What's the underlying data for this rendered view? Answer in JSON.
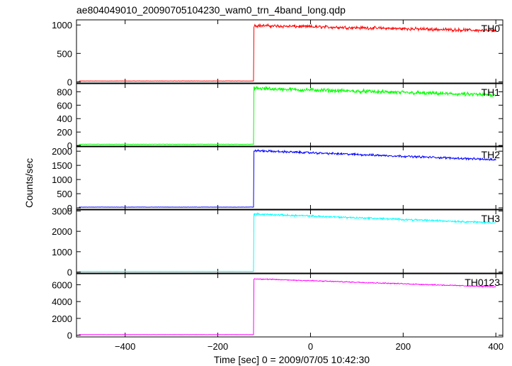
{
  "chart_data": {
    "type": "line",
    "title": "ae804049010_20090705104230_wam0_trn_4band_long.qdp",
    "xlabel": "Time [sec] 0 = 2009/07/05 10:42:30",
    "ylabel": "Counts/sec",
    "xlim": [
      -505,
      415
    ],
    "x_ticks": [
      -400,
      -200,
      0,
      200,
      400
    ],
    "x_tick_labels": [
      "−400",
      "−200",
      "0",
      "200",
      "400"
    ],
    "step_time": -122,
    "data_end": 400,
    "series": [
      {
        "name": "TH0",
        "color": "#ff0000",
        "ylim": [
          -20,
          1090
        ],
        "y_ticks": [
          0,
          500,
          1000
        ],
        "pre_level": 15,
        "post_start": 990,
        "post_end": 900,
        "noise": 35
      },
      {
        "name": "TH1",
        "color": "#00ff00",
        "ylim": [
          -20,
          920
        ],
        "y_ticks": [
          0,
          200,
          400,
          600,
          800
        ],
        "pre_level": 18,
        "post_start": 850,
        "post_end": 750,
        "noise": 35
      },
      {
        "name": "TH2",
        "color": "#0000ff",
        "ylim": [
          -50,
          2180
        ],
        "y_ticks": [
          0,
          500,
          1000,
          1500,
          2000
        ],
        "pre_level": 25,
        "post_start": 2020,
        "post_end": 1700,
        "noise": 45
      },
      {
        "name": "TH3",
        "color": "#00ffff",
        "ylim": [
          -50,
          3050
        ],
        "y_ticks": [
          0,
          1000,
          2000,
          3000
        ],
        "pre_level": 30,
        "post_start": 2850,
        "post_end": 2420,
        "noise": 55
      },
      {
        "name": "TH0123",
        "color": "#ff00ff",
        "ylim": [
          -200,
          7300
        ],
        "y_ticks": [
          0,
          2000,
          4000,
          6000
        ],
        "pre_level": 70,
        "post_start": 6700,
        "post_end": 5750,
        "noise": 75
      }
    ]
  }
}
